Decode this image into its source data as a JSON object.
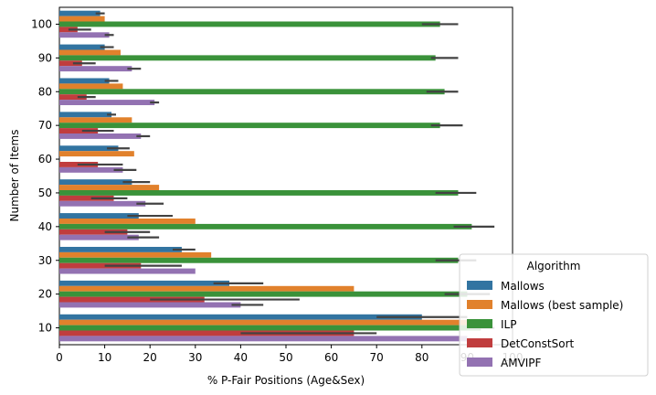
{
  "chart_data": {
    "type": "bar",
    "orientation": "horizontal",
    "xlabel": "% P-Fair Positions (Age&Sex)",
    "ylabel": "Number of Items",
    "xlim": [
      0,
      100
    ],
    "xticks": [
      0,
      10,
      20,
      30,
      40,
      50,
      60,
      70,
      80,
      90,
      100
    ],
    "categories": [
      "100",
      "90",
      "80",
      "70",
      "60",
      "50",
      "40",
      "30",
      "20",
      "10"
    ],
    "legend": {
      "title": "Algorithm",
      "placement": "lower-right"
    },
    "series": [
      {
        "name": "Mallows",
        "color": "#3274a1",
        "values": [
          9,
          10,
          11,
          11.5,
          13,
          16,
          17.5,
          27,
          37.5,
          80
        ],
        "error": [
          [
            8,
            10
          ],
          [
            9,
            12
          ],
          [
            10,
            13
          ],
          [
            10.5,
            12.5
          ],
          [
            10.5,
            15.5
          ],
          [
            14,
            20
          ],
          [
            15,
            25
          ],
          [
            25,
            30
          ],
          [
            34,
            45
          ],
          [
            70,
            90
          ]
        ]
      },
      {
        "name": "Mallows (best sample)",
        "color": "#e1812c",
        "values": [
          10,
          13.5,
          14,
          16,
          16.5,
          22,
          30,
          33.5,
          65,
          95
        ],
        "error": [
          [
            10,
            10
          ],
          [
            13.5,
            13.5
          ],
          [
            14,
            14
          ],
          [
            16,
            16
          ],
          [
            16.5,
            16.5
          ],
          [
            22,
            22
          ],
          [
            30,
            30
          ],
          [
            33.5,
            33.5
          ],
          [
            65,
            65
          ],
          [
            95,
            95
          ]
        ]
      },
      {
        "name": "ILP",
        "color": "#3a923a",
        "values": [
          84,
          83,
          85,
          84,
          0,
          88,
          91,
          88,
          90,
          93
        ],
        "error": [
          [
            80,
            88
          ],
          [
            82,
            88
          ],
          [
            81,
            88
          ],
          [
            82,
            89
          ],
          [
            0,
            0
          ],
          [
            83,
            92
          ],
          [
            87,
            96
          ],
          [
            83,
            92
          ],
          [
            85,
            95
          ],
          [
            90,
            96
          ]
        ]
      },
      {
        "name": "DetConstSort",
        "color": "#c03d3e",
        "values": [
          4,
          5,
          6,
          8.5,
          8.5,
          12,
          15,
          18,
          32,
          65
        ],
        "error": [
          [
            2,
            7
          ],
          [
            3,
            8
          ],
          [
            4,
            8
          ],
          [
            5,
            12
          ],
          [
            4,
            14
          ],
          [
            7,
            15
          ],
          [
            10,
            20
          ],
          [
            10,
            27
          ],
          [
            20,
            53
          ],
          [
            40,
            70
          ]
        ]
      },
      {
        "name": "AMVIPF",
        "color": "#9372b2",
        "values": [
          11,
          16,
          21,
          18,
          14,
          19,
          17.5,
          30,
          40,
          90
        ],
        "error": [
          [
            10,
            12
          ],
          [
            15,
            18
          ],
          [
            20,
            22
          ],
          [
            17,
            20
          ],
          [
            12,
            17
          ],
          [
            17,
            23
          ],
          [
            15,
            22
          ],
          [
            30,
            30
          ],
          [
            38,
            45
          ],
          [
            90,
            90
          ]
        ]
      }
    ]
  }
}
